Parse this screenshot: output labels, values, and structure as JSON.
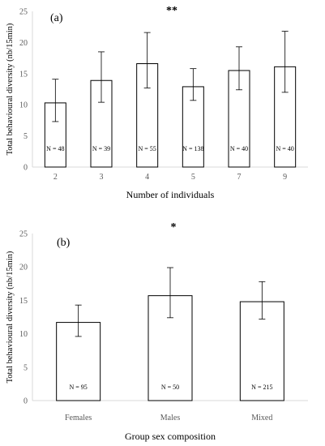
{
  "chart_data": [
    {
      "type": "bar",
      "panel_label": "(a)",
      "significance": "**",
      "xlabel": "Number of individuals",
      "ylabel": "Total behavioural diversity (nb/15min)",
      "ylim": [
        0,
        25
      ],
      "yticks": [
        "0",
        "5",
        "10",
        "15",
        "20",
        "25"
      ],
      "categories": [
        "2",
        "3",
        "4",
        "5",
        "7",
        "9"
      ],
      "values": [
        10.3,
        13.9,
        16.6,
        12.9,
        15.5,
        16.1
      ],
      "error_low": [
        7.3,
        10.4,
        12.7,
        10.7,
        12.4,
        12.0
      ],
      "error_high": [
        14.1,
        18.5,
        21.6,
        15.8,
        19.3,
        21.8
      ],
      "n_labels": [
        "N = 48",
        "N = 39",
        "N = 55",
        "N = 138",
        "N = 40",
        "N = 40"
      ],
      "grid": false,
      "bar_fill": "#ffffff",
      "bar_stroke": "#000000"
    },
    {
      "type": "bar",
      "panel_label": "(b)",
      "significance": "*",
      "xlabel": "Group sex composition",
      "ylabel": "Total behavioural diversity (nb/15min)",
      "ylim": [
        0,
        25
      ],
      "yticks": [
        "0",
        "5",
        "10",
        "15",
        "20",
        "25"
      ],
      "categories": [
        "Females",
        "Males",
        "Mixed"
      ],
      "values": [
        11.7,
        15.7,
        14.8
      ],
      "error_low": [
        9.6,
        12.4,
        12.2
      ],
      "error_high": [
        14.3,
        19.9,
        17.8
      ],
      "n_labels": [
        "N = 95",
        "N = 50",
        "N = 215"
      ],
      "grid": false,
      "bar_fill": "#ffffff",
      "bar_stroke": "#000000"
    }
  ]
}
